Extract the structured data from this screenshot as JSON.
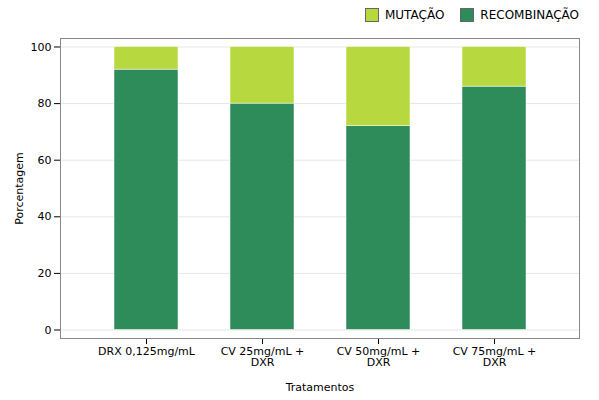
{
  "chart_data": {
    "type": "bar",
    "stacked": true,
    "categories": [
      "DRX 0,125mg/mL",
      "CV 25mg/mL +\nDXR",
      "CV 50mg/mL +\nDXR",
      "CV 75mg/mL +\nDXR"
    ],
    "series": [
      {
        "name": "RECOMBINAÇÃO",
        "color": "#2d8c5a",
        "values": [
          92,
          80,
          72,
          86
        ]
      },
      {
        "name": "MUTAÇÃO",
        "color": "#b8d840",
        "values": [
          8,
          20,
          28,
          14
        ]
      }
    ],
    "xlabel": "Tratamentos",
    "ylabel": "Porcentagem",
    "ylim": [
      -3,
      103
    ],
    "yticks": [
      0,
      20,
      40,
      60,
      80,
      100
    ],
    "grid": true,
    "legend": "upper right"
  }
}
